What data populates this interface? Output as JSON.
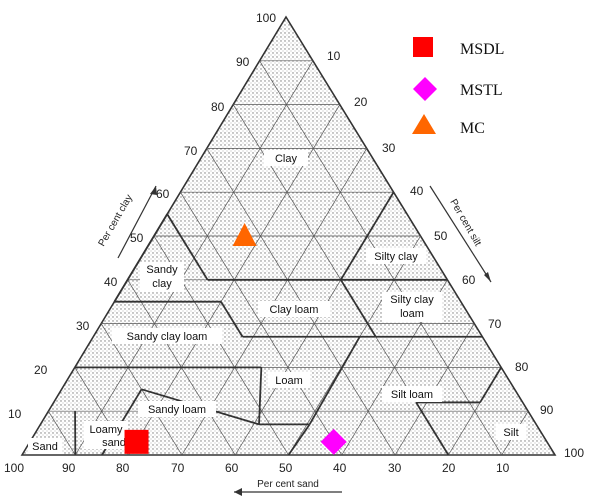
{
  "axes": {
    "clay_label": "Per cent clay",
    "silt_label": "Per cent silt",
    "sand_label": "Per cent sand"
  },
  "ticks": {
    "clay": [
      "10",
      "20",
      "30",
      "40",
      "50",
      "60",
      "70",
      "80",
      "90",
      "100"
    ],
    "silt": [
      "10",
      "20",
      "30",
      "40",
      "50",
      "60",
      "70",
      "80",
      "90",
      "100"
    ],
    "sand": [
      "100",
      "90",
      "80",
      "70",
      "60",
      "50",
      "40",
      "30",
      "20",
      "10"
    ]
  },
  "zones": {
    "clay": "Clay",
    "silty_clay": "Silty clay",
    "sandy_clay": [
      "Sandy",
      "clay"
    ],
    "silty_clay_loam": [
      "Silty clay",
      "loam"
    ],
    "clay_loam": "Clay loam",
    "sandy_clay_loam": "Sandy clay loam",
    "loam": "Loam",
    "silt_loam": "Silt loam",
    "sandy_loam": "Sandy loam",
    "loamy_sand": [
      "Loamy",
      "sand"
    ],
    "sand": "Sand",
    "silt": "Silt"
  },
  "legend": [
    {
      "label": "MSDL",
      "shape": "square",
      "color": "#ff0000"
    },
    {
      "label": "MSTL",
      "shape": "diamond",
      "color": "#ff00ff"
    },
    {
      "label": "MC",
      "shape": "triangle",
      "color": "#ff6600"
    }
  ],
  "samples": [
    {
      "label": "MSDL",
      "sand": 77,
      "clay": 3
    },
    {
      "label": "MSTL",
      "sand": 40,
      "clay": 3
    },
    {
      "label": "MC",
      "sand": 33,
      "clay": 50
    }
  ],
  "colors": {
    "grid": "#555555",
    "boundary": "#333333",
    "hatch": "#888888"
  }
}
